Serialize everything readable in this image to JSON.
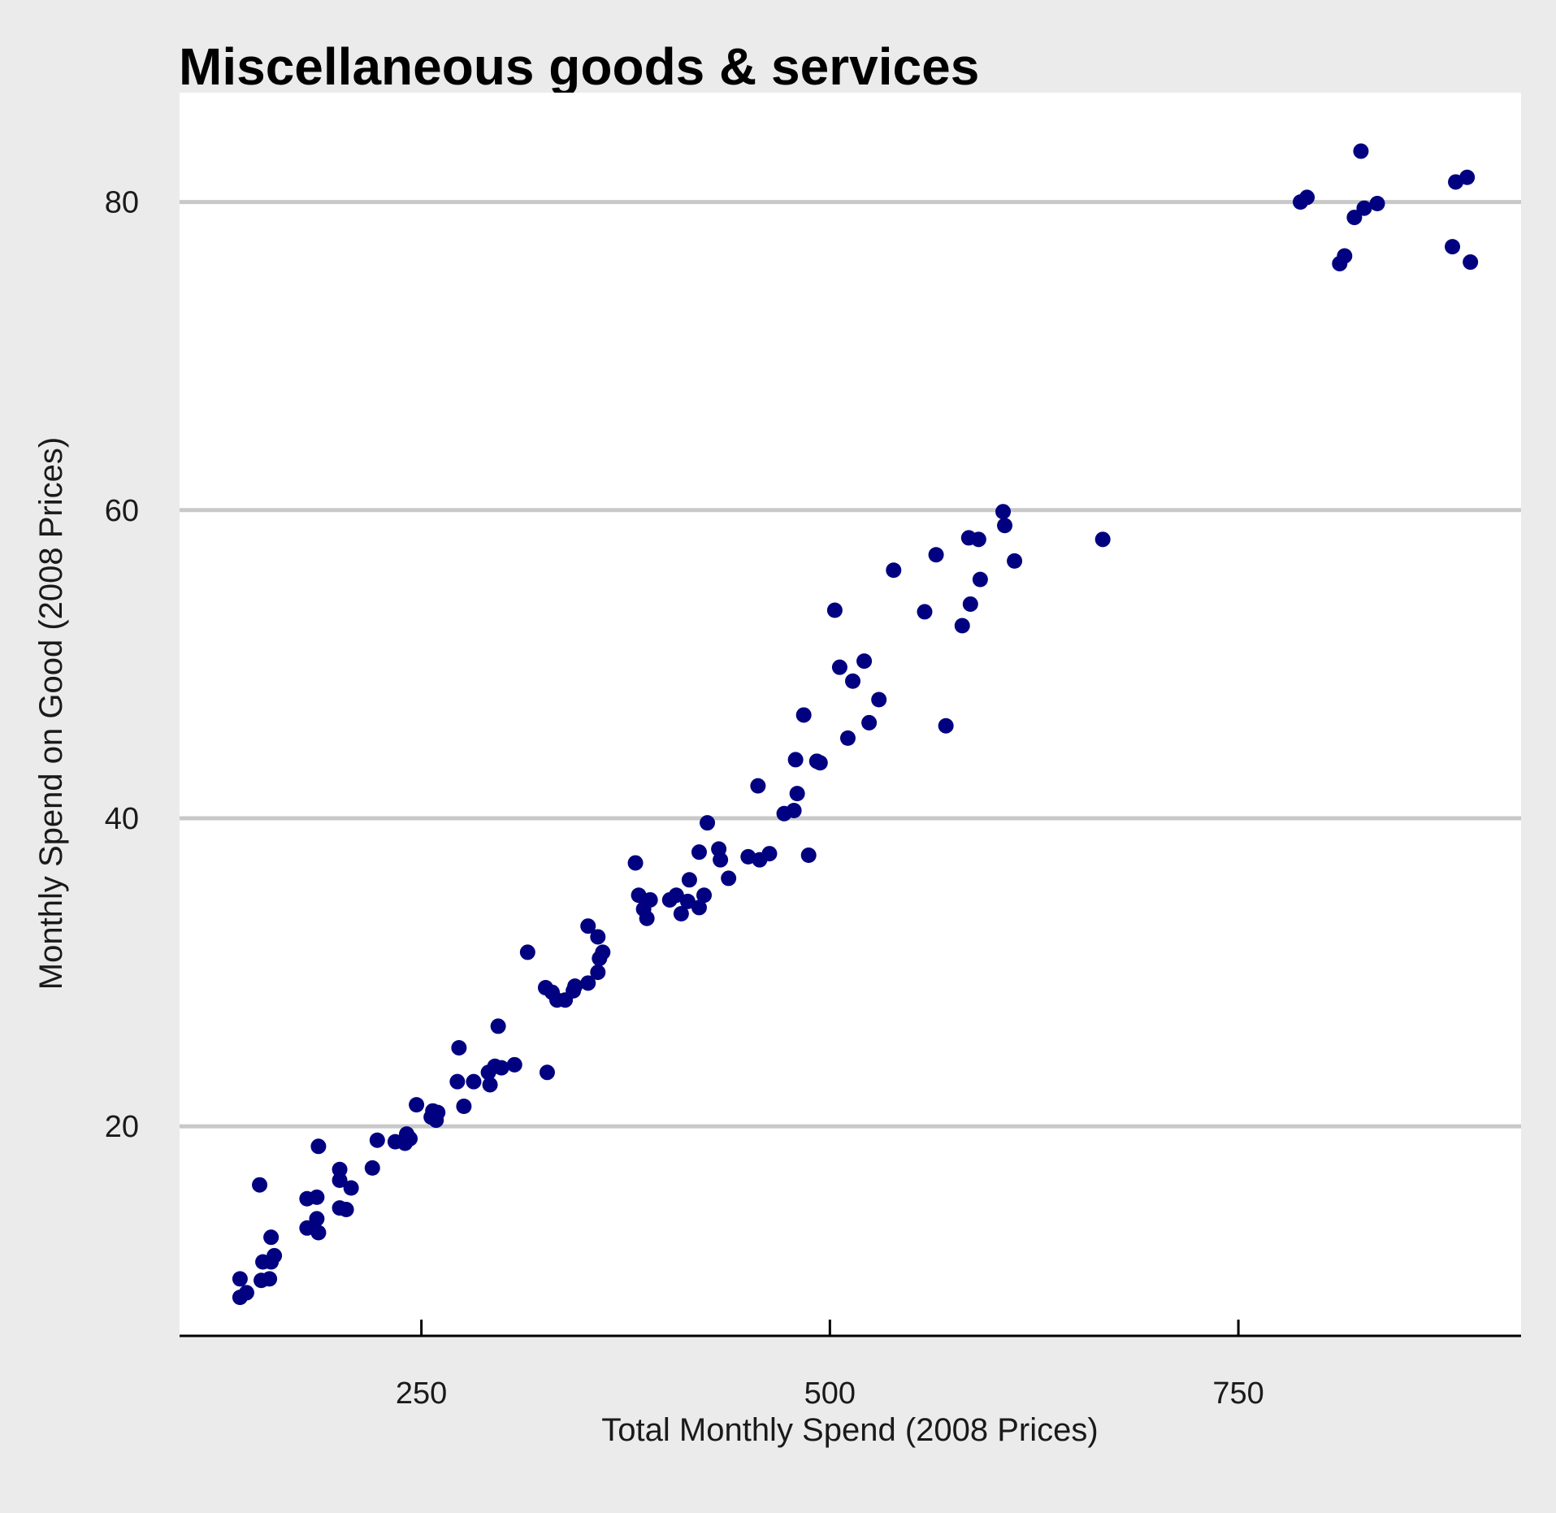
{
  "chart_data": {
    "type": "scatter",
    "title": "Miscellaneous goods & services",
    "xlabel": "Total Monthly Spend (2008 Prices)",
    "ylabel": "Monthly Spend on Good (2008 Prices)",
    "xlim": [
      102,
      923
    ],
    "ylim": [
      6.4,
      87.1
    ],
    "xticks": [
      250,
      500,
      750
    ],
    "yticks": [
      20,
      40,
      60,
      80
    ],
    "grid": "horizontal",
    "legend": "none",
    "colors": {
      "point": "#000080",
      "grid": "#c8c8c8",
      "panel": "#ffffff",
      "background": "#ebebeb",
      "axis": "#000000"
    },
    "points": [
      [
        139,
        10.1
      ],
      [
        139,
        8.9
      ],
      [
        143,
        9.2
      ],
      [
        151,
        16.2
      ],
      [
        152,
        10.0
      ],
      [
        153,
        11.2
      ],
      [
        157,
        10.1
      ],
      [
        158,
        12.8
      ],
      [
        158,
        11.2
      ],
      [
        160,
        11.6
      ],
      [
        180,
        15.3
      ],
      [
        180,
        13.4
      ],
      [
        186,
        14.0
      ],
      [
        186,
        15.4
      ],
      [
        187,
        13.1
      ],
      [
        187,
        18.7
      ],
      [
        200,
        17.2
      ],
      [
        200,
        16.5
      ],
      [
        200,
        14.7
      ],
      [
        204,
        14.6
      ],
      [
        207,
        16.0
      ],
      [
        220,
        17.3
      ],
      [
        223,
        19.1
      ],
      [
        234,
        19.0
      ],
      [
        240,
        18.9
      ],
      [
        241,
        19.5
      ],
      [
        243,
        19.2
      ],
      [
        247,
        21.4
      ],
      [
        256,
        20.6
      ],
      [
        257,
        21.0
      ],
      [
        259,
        20.4
      ],
      [
        260,
        20.9
      ],
      [
        272,
        22.9
      ],
      [
        273,
        25.1
      ],
      [
        276,
        21.3
      ],
      [
        282,
        22.9
      ],
      [
        291,
        23.5
      ],
      [
        292,
        22.7
      ],
      [
        295,
        23.9
      ],
      [
        297,
        26.5
      ],
      [
        299,
        23.8
      ],
      [
        307,
        24.0
      ],
      [
        315,
        31.3
      ],
      [
        326,
        29.0
      ],
      [
        327,
        23.5
      ],
      [
        330,
        28.7
      ],
      [
        333,
        28.2
      ],
      [
        338,
        28.2
      ],
      [
        343,
        28.8
      ],
      [
        344,
        29.1
      ],
      [
        352,
        33.0
      ],
      [
        352,
        29.3
      ],
      [
        358,
        30.0
      ],
      [
        358,
        32.3
      ],
      [
        359,
        30.9
      ],
      [
        361,
        31.3
      ],
      [
        381,
        37.1
      ],
      [
        383,
        35.0
      ],
      [
        386,
        34.1
      ],
      [
        388,
        33.5
      ],
      [
        390,
        34.7
      ],
      [
        402,
        34.7
      ],
      [
        406,
        35.0
      ],
      [
        409,
        33.8
      ],
      [
        413,
        34.6
      ],
      [
        414,
        36.0
      ],
      [
        420,
        37.8
      ],
      [
        420,
        34.2
      ],
      [
        423,
        35.0
      ],
      [
        425,
        39.7
      ],
      [
        432,
        38.0
      ],
      [
        433,
        37.3
      ],
      [
        438,
        36.1
      ],
      [
        450,
        37.5
      ],
      [
        456,
        42.1
      ],
      [
        457,
        37.3
      ],
      [
        463,
        37.7
      ],
      [
        472,
        40.3
      ],
      [
        478,
        40.5
      ],
      [
        479,
        43.8
      ],
      [
        480,
        41.6
      ],
      [
        484,
        46.7
      ],
      [
        487,
        37.6
      ],
      [
        492,
        43.7
      ],
      [
        494,
        43.6
      ],
      [
        503,
        53.5
      ],
      [
        506,
        49.8
      ],
      [
        511,
        45.2
      ],
      [
        514,
        48.9
      ],
      [
        521,
        50.2
      ],
      [
        524,
        46.2
      ],
      [
        530,
        47.7
      ],
      [
        539,
        56.1
      ],
      [
        558,
        53.4
      ],
      [
        565,
        57.1
      ],
      [
        571,
        46.0
      ],
      [
        581,
        52.5
      ],
      [
        585,
        58.2
      ],
      [
        586,
        53.9
      ],
      [
        591,
        58.1
      ],
      [
        592,
        55.5
      ],
      [
        606,
        59.9
      ],
      [
        607,
        59.0
      ],
      [
        613,
        56.7
      ],
      [
        667,
        58.1
      ],
      [
        788,
        80.0
      ],
      [
        792,
        80.3
      ],
      [
        812,
        76.0
      ],
      [
        815,
        76.5
      ],
      [
        821,
        79.0
      ],
      [
        825,
        83.3
      ],
      [
        827,
        79.6
      ],
      [
        835,
        79.9
      ],
      [
        881,
        77.1
      ],
      [
        883,
        81.3
      ],
      [
        890,
        81.6
      ],
      [
        892,
        76.1
      ]
    ]
  }
}
